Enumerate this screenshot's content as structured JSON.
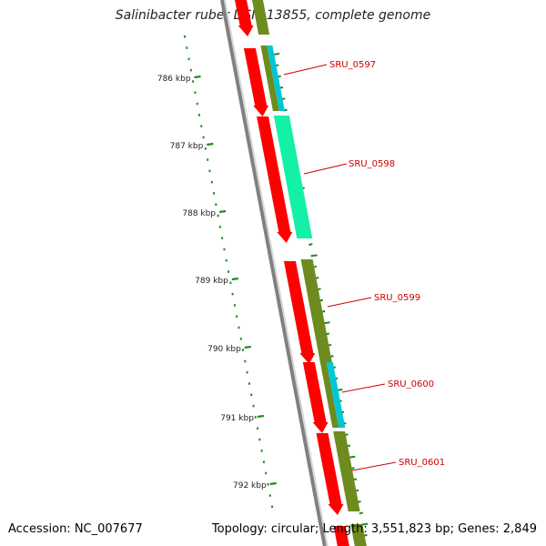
{
  "title": "Salinibacter ruber DSM 13855, complete genome",
  "footer": {
    "accession": "Accession: NC_007677",
    "topology": "Topology: circular; Length: 3,551,823 bp; Genes: 2,849"
  },
  "colors": {
    "backbone": "#808080",
    "cds_forward": "#ff0000",
    "feature_olive": "#6e8b1f",
    "feature_cyan": "#00c6d6",
    "feature_mint": "#14f0a6",
    "ruler": "#228b22",
    "label": "#cc0000"
  },
  "ruler": {
    "ticks": [
      "786 kbp",
      "787 kbp",
      "788 kbp",
      "789 kbp",
      "790 kbp",
      "791 kbp",
      "792 kbp"
    ]
  },
  "genes": [
    {
      "name": "SRU_0597"
    },
    {
      "name": "SRU_0598"
    },
    {
      "name": "SRU_0599"
    },
    {
      "name": "SRU_0600"
    },
    {
      "name": "SRU_0601"
    }
  ]
}
